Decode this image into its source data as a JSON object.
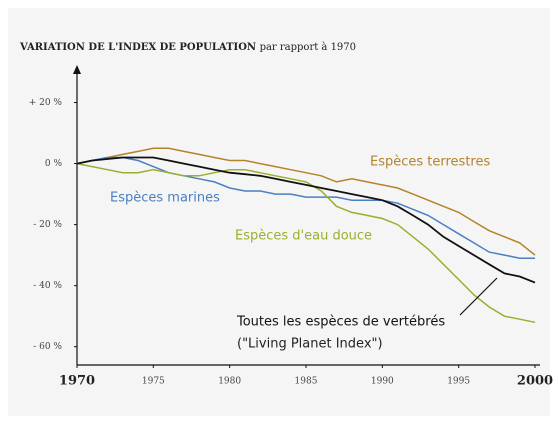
{
  "chart_data": {
    "type": "line",
    "title": "VARIATION DE L'INDEX DE POPULATION",
    "subtitle": "par rapport à 1970",
    "x": [
      1970,
      1971,
      1972,
      1973,
      1974,
      1975,
      1976,
      1977,
      1978,
      1979,
      1980,
      1981,
      1982,
      1983,
      1984,
      1985,
      1986,
      1987,
      1988,
      1989,
      1990,
      1991,
      1992,
      1993,
      1994,
      1995,
      1996,
      1997,
      1998,
      1999,
      2000
    ],
    "series": [
      {
        "name": "Espèces terrestres",
        "color": "#b5832a",
        "values": [
          0,
          1,
          2,
          3,
          4,
          5,
          5,
          4,
          3,
          2,
          1,
          1,
          0,
          -1,
          -2,
          -3,
          -4,
          -6,
          -5,
          -6,
          -7,
          -8,
          -10,
          -12,
          -14,
          -16,
          -19,
          -22,
          -24,
          -26,
          -30
        ]
      },
      {
        "name": "Espèces marines",
        "color": "#4a7fc1",
        "values": [
          0,
          1,
          2,
          2,
          1,
          -1,
          -3,
          -4,
          -5,
          -6,
          -8,
          -9,
          -9,
          -10,
          -10,
          -11,
          -11,
          -11,
          -12,
          -12,
          -12,
          -13,
          -15,
          -17,
          -20,
          -23,
          -26,
          -29,
          -30,
          -31,
          -31
        ]
      },
      {
        "name": "Espèces d'eau douce",
        "color": "#9cae2e",
        "values": [
          0,
          -1,
          -2,
          -3,
          -3,
          -2,
          -3,
          -4,
          -4,
          -3,
          -2,
          -2,
          -3,
          -4,
          -5,
          -6,
          -9,
          -14,
          -16,
          -17,
          -18,
          -20,
          -24,
          -28,
          -33,
          -38,
          -43,
          -47,
          -50,
          -51,
          -52
        ]
      },
      {
        "name": "Toutes les espèces de vertébrés",
        "color": "#111111",
        "values": [
          0,
          1,
          1.5,
          2,
          2,
          2,
          1,
          0,
          -1,
          -2,
          -3,
          -3.5,
          -4,
          -5,
          -6,
          -7,
          -8,
          -9,
          -10,
          -11,
          -12,
          -14,
          -17,
          -20,
          -24,
          -27,
          -30,
          -33,
          -36,
          -37,
          -39
        ]
      }
    ],
    "annotations": [
      "(\"Living Planet Index\")"
    ],
    "xlim": [
      1970,
      2000
    ],
    "xticks": [
      1970,
      1975,
      1980,
      1985,
      1990,
      1995,
      2000
    ],
    "ylim": [
      -66,
      30
    ],
    "yticks": [
      {
        "value": 20,
        "label": "+ 20 %"
      },
      {
        "value": 0,
        "label": "0 %"
      },
      {
        "value": -20,
        "label": "- 20 %"
      },
      {
        "value": -40,
        "label": "- 40 %"
      },
      {
        "value": -60,
        "label": "- 60 %"
      }
    ]
  }
}
